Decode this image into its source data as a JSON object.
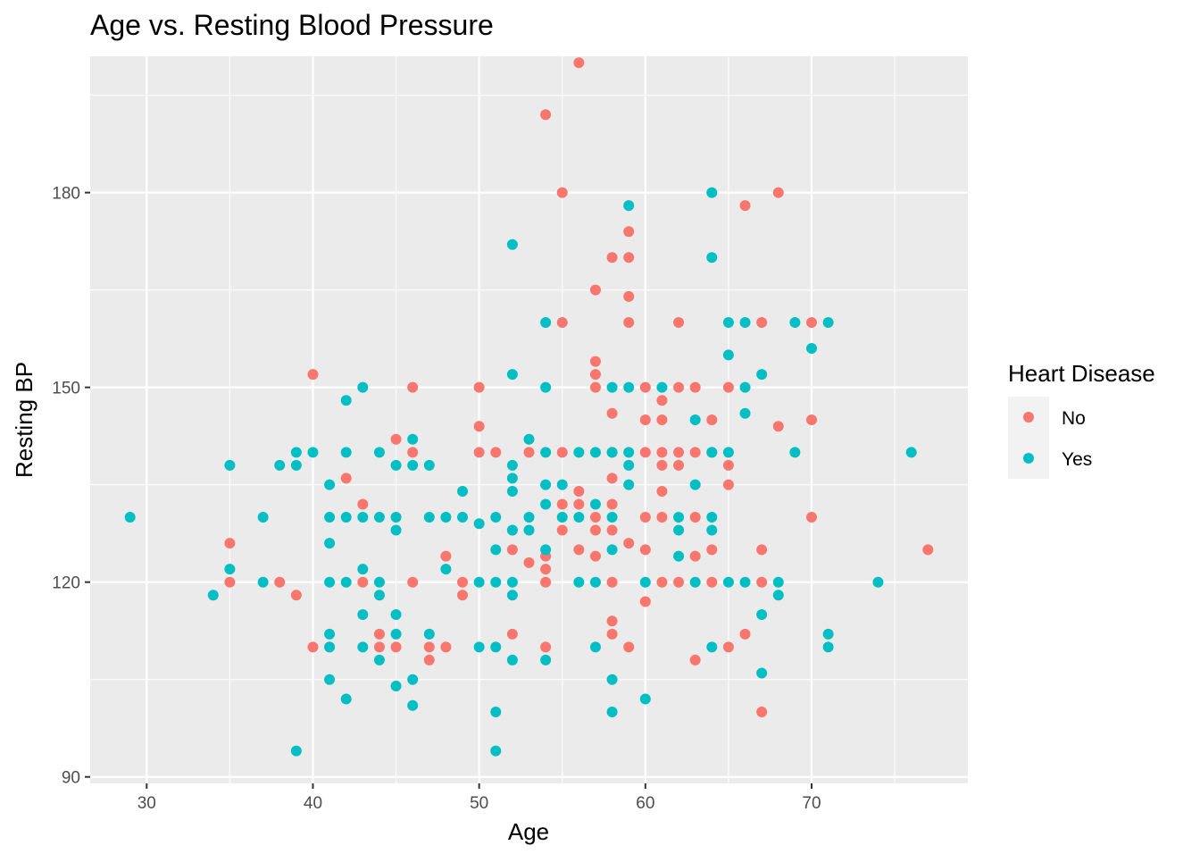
{
  "chart_data": {
    "type": "scatter",
    "title": "Age vs. Resting Blood Pressure",
    "xlabel": "Age",
    "ylabel": "Resting BP",
    "xlim": [
      26.6,
      79.4
    ],
    "ylim": [
      89,
      201
    ],
    "x_ticks": [
      30,
      40,
      50,
      60,
      70
    ],
    "y_ticks": [
      90,
      120,
      150,
      180
    ],
    "grid": true,
    "legend": {
      "title": "Heart Disease",
      "position": "right"
    },
    "series": [
      {
        "name": "No",
        "color": "#F8766D",
        "points": [
          [
            35,
            126
          ],
          [
            35,
            120
          ],
          [
            38,
            120
          ],
          [
            39,
            118
          ],
          [
            40,
            152
          ],
          [
            40,
            110
          ],
          [
            41,
            110
          ],
          [
            42,
            136
          ],
          [
            43,
            132
          ],
          [
            43,
            120
          ],
          [
            44,
            112
          ],
          [
            44,
            110
          ],
          [
            45,
            142
          ],
          [
            45,
            110
          ],
          [
            46,
            150
          ],
          [
            46,
            140
          ],
          [
            46,
            120
          ],
          [
            47,
            110
          ],
          [
            47,
            108
          ],
          [
            48,
            124
          ],
          [
            48,
            110
          ],
          [
            49,
            120
          ],
          [
            49,
            118
          ],
          [
            50,
            150
          ],
          [
            50,
            144
          ],
          [
            50,
            140
          ],
          [
            51,
            140
          ],
          [
            52,
            128
          ],
          [
            52,
            125
          ],
          [
            52,
            112
          ],
          [
            53,
            140
          ],
          [
            53,
            123
          ],
          [
            54,
            192
          ],
          [
            54,
            124
          ],
          [
            54,
            122
          ],
          [
            54,
            120
          ],
          [
            54,
            110
          ],
          [
            55,
            180
          ],
          [
            55,
            160
          ],
          [
            55,
            140
          ],
          [
            55,
            132
          ],
          [
            55,
            128
          ],
          [
            56,
            200
          ],
          [
            56,
            134
          ],
          [
            56,
            132
          ],
          [
            56,
            125
          ],
          [
            57,
            165
          ],
          [
            57,
            154
          ],
          [
            57,
            152
          ],
          [
            57,
            150
          ],
          [
            57,
            130
          ],
          [
            57,
            128
          ],
          [
            57,
            124
          ],
          [
            58,
            170
          ],
          [
            58,
            146
          ],
          [
            58,
            140
          ],
          [
            58,
            136
          ],
          [
            58,
            132
          ],
          [
            58,
            128
          ],
          [
            58,
            120
          ],
          [
            58,
            114
          ],
          [
            58,
            112
          ],
          [
            59,
            174
          ],
          [
            59,
            170
          ],
          [
            59,
            164
          ],
          [
            59,
            160
          ],
          [
            59,
            126
          ],
          [
            59,
            110
          ],
          [
            60,
            150
          ],
          [
            60,
            145
          ],
          [
            60,
            140
          ],
          [
            60,
            130
          ],
          [
            60,
            125
          ],
          [
            60,
            117
          ],
          [
            61,
            148
          ],
          [
            61,
            145
          ],
          [
            61,
            140
          ],
          [
            61,
            138
          ],
          [
            61,
            134
          ],
          [
            61,
            130
          ],
          [
            61,
            120
          ],
          [
            62,
            160
          ],
          [
            62,
            150
          ],
          [
            62,
            140
          ],
          [
            62,
            138
          ],
          [
            62,
            120
          ],
          [
            63,
            150
          ],
          [
            63,
            140
          ],
          [
            63,
            130
          ],
          [
            63,
            124
          ],
          [
            63,
            108
          ],
          [
            64,
            145
          ],
          [
            64,
            140
          ],
          [
            64,
            125
          ],
          [
            64,
            120
          ],
          [
            65,
            150
          ],
          [
            65,
            138
          ],
          [
            65,
            135
          ],
          [
            65,
            110
          ],
          [
            66,
            178
          ],
          [
            66,
            112
          ],
          [
            67,
            160
          ],
          [
            67,
            125
          ],
          [
            67,
            120
          ],
          [
            67,
            100
          ],
          [
            68,
            180
          ],
          [
            68,
            144
          ],
          [
            70,
            160
          ],
          [
            70,
            145
          ],
          [
            70,
            130
          ],
          [
            77,
            125
          ]
        ]
      },
      {
        "name": "Yes",
        "color": "#00BFC4",
        "points": [
          [
            29,
            130
          ],
          [
            34,
            118
          ],
          [
            35,
            138
          ],
          [
            35,
            122
          ],
          [
            37,
            130
          ],
          [
            37,
            120
          ],
          [
            38,
            138
          ],
          [
            39,
            140
          ],
          [
            39,
            138
          ],
          [
            39,
            94
          ],
          [
            40,
            140
          ],
          [
            41,
            135
          ],
          [
            41,
            130
          ],
          [
            41,
            126
          ],
          [
            41,
            120
          ],
          [
            41,
            112
          ],
          [
            41,
            110
          ],
          [
            41,
            105
          ],
          [
            42,
            148
          ],
          [
            42,
            140
          ],
          [
            42,
            130
          ],
          [
            42,
            120
          ],
          [
            42,
            102
          ],
          [
            43,
            150
          ],
          [
            43,
            130
          ],
          [
            43,
            122
          ],
          [
            43,
            115
          ],
          [
            43,
            110
          ],
          [
            44,
            140
          ],
          [
            44,
            130
          ],
          [
            44,
            120
          ],
          [
            44,
            118
          ],
          [
            44,
            108
          ],
          [
            45,
            138
          ],
          [
            45,
            130
          ],
          [
            45,
            128
          ],
          [
            45,
            115
          ],
          [
            45,
            112
          ],
          [
            45,
            104
          ],
          [
            46,
            142
          ],
          [
            46,
            138
          ],
          [
            46,
            105
          ],
          [
            46,
            101
          ],
          [
            47,
            138
          ],
          [
            47,
            130
          ],
          [
            47,
            112
          ],
          [
            48,
            130
          ],
          [
            48,
            122
          ],
          [
            49,
            134
          ],
          [
            49,
            130
          ],
          [
            50,
            129
          ],
          [
            50,
            120
          ],
          [
            50,
            110
          ],
          [
            51,
            130
          ],
          [
            51,
            125
          ],
          [
            51,
            120
          ],
          [
            51,
            110
          ],
          [
            51,
            100
          ],
          [
            51,
            94
          ],
          [
            52,
            172
          ],
          [
            52,
            152
          ],
          [
            52,
            138
          ],
          [
            52,
            136
          ],
          [
            52,
            134
          ],
          [
            52,
            128
          ],
          [
            52,
            120
          ],
          [
            52,
            118
          ],
          [
            52,
            108
          ],
          [
            53,
            142
          ],
          [
            53,
            130
          ],
          [
            53,
            128
          ],
          [
            54,
            160
          ],
          [
            54,
            150
          ],
          [
            54,
            140
          ],
          [
            54,
            135
          ],
          [
            54,
            132
          ],
          [
            54,
            125
          ],
          [
            54,
            108
          ],
          [
            55,
            135
          ],
          [
            55,
            130
          ],
          [
            56,
            140
          ],
          [
            56,
            130
          ],
          [
            56,
            120
          ],
          [
            57,
            140
          ],
          [
            57,
            132
          ],
          [
            57,
            120
          ],
          [
            57,
            110
          ],
          [
            58,
            150
          ],
          [
            58,
            140
          ],
          [
            58,
            130
          ],
          [
            58,
            125
          ],
          [
            58,
            105
          ],
          [
            58,
            100
          ],
          [
            59,
            178
          ],
          [
            59,
            150
          ],
          [
            59,
            140
          ],
          [
            59,
            138
          ],
          [
            59,
            135
          ],
          [
            60,
            120
          ],
          [
            60,
            102
          ],
          [
            61,
            150
          ],
          [
            62,
            130
          ],
          [
            62,
            128
          ],
          [
            62,
            124
          ],
          [
            63,
            145
          ],
          [
            63,
            135
          ],
          [
            63,
            120
          ],
          [
            64,
            180
          ],
          [
            64,
            170
          ],
          [
            64,
            140
          ],
          [
            64,
            130
          ],
          [
            64,
            128
          ],
          [
            64,
            110
          ],
          [
            65,
            160
          ],
          [
            65,
            155
          ],
          [
            65,
            140
          ],
          [
            65,
            120
          ],
          [
            66,
            160
          ],
          [
            66,
            150
          ],
          [
            66,
            146
          ],
          [
            66,
            120
          ],
          [
            67,
            152
          ],
          [
            67,
            115
          ],
          [
            67,
            106
          ],
          [
            68,
            120
          ],
          [
            68,
            118
          ],
          [
            69,
            160
          ],
          [
            69,
            140
          ],
          [
            70,
            156
          ],
          [
            71,
            160
          ],
          [
            71,
            112
          ],
          [
            71,
            110
          ],
          [
            74,
            120
          ],
          [
            76,
            140
          ]
        ]
      }
    ]
  }
}
